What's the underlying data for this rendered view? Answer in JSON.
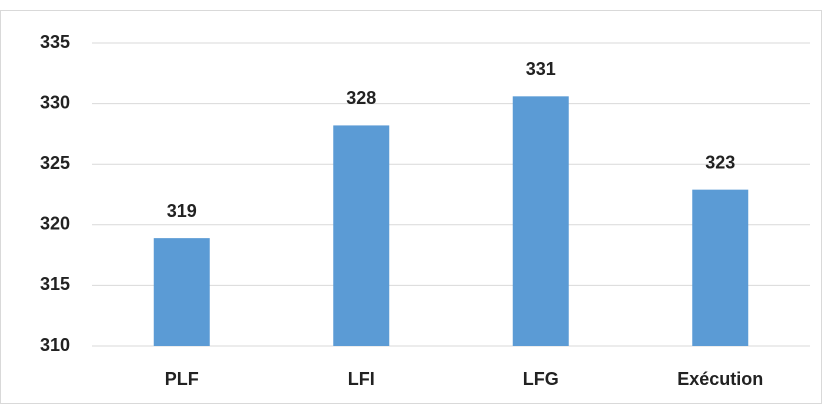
{
  "chart_data": {
    "type": "bar",
    "categories": [
      "PLF",
      "LFI",
      "LFG",
      "Exécution"
    ],
    "values": [
      318.9,
      328.2,
      330.6,
      322.9
    ],
    "value_labels": [
      "319",
      "328",
      "331",
      "323"
    ],
    "color": "#5b9bd5",
    "ylim": [
      310,
      335
    ],
    "yticks": [
      310,
      315,
      320,
      325,
      330,
      335
    ],
    "grid": true
  }
}
